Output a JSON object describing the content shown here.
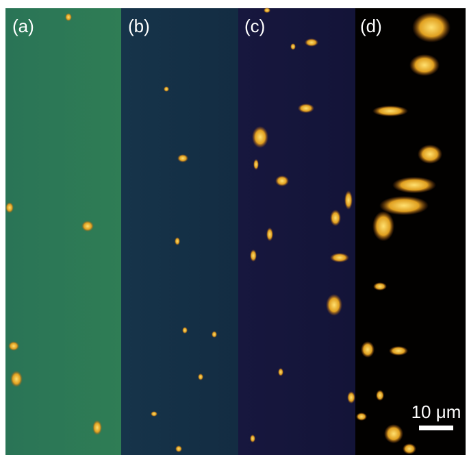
{
  "panels": [
    {
      "label": "(a)"
    },
    {
      "label": "(b)"
    },
    {
      "label": "(c)"
    },
    {
      "label": "(d)"
    }
  ],
  "scale_bar": {
    "label": "10 μm"
  }
}
